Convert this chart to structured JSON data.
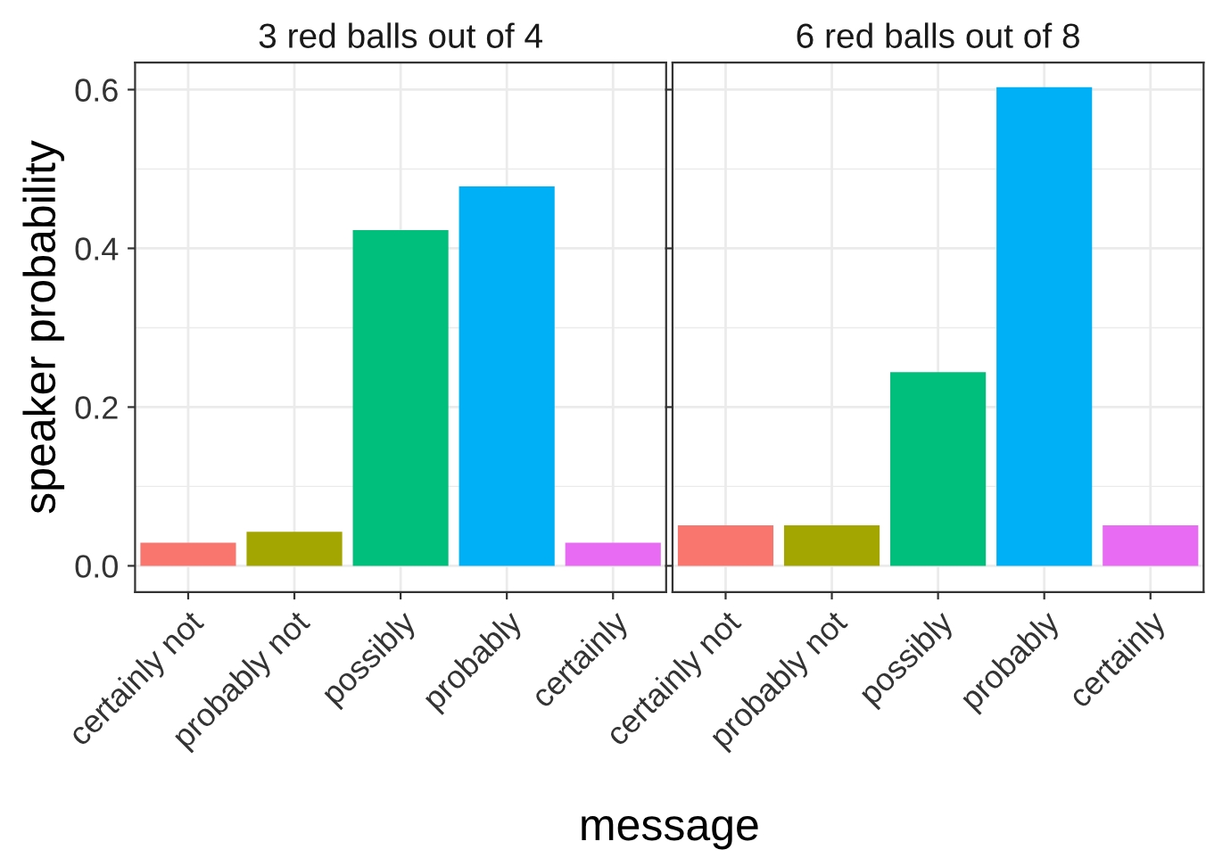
{
  "chart_data": [
    {
      "type": "bar",
      "title": "3 red balls out of 4",
      "xlabel": "message",
      "ylabel": "speaker probability",
      "categories": [
        "certainly not",
        "probably not",
        "possibly",
        "probably",
        "certainly"
      ],
      "values": [
        0.029,
        0.043,
        0.423,
        0.478,
        0.029
      ],
      "colors": [
        "#f8766d",
        "#a3a500",
        "#00bf7d",
        "#00b0f6",
        "#e76bf3"
      ],
      "ylim": [
        -0.033,
        0.634
      ],
      "yticks": [
        {
          "value": 0.0,
          "label": "0.0"
        },
        {
          "value": 0.1,
          "label": null
        },
        {
          "value": 0.2,
          "label": "0.2"
        },
        {
          "value": 0.3,
          "label": null
        },
        {
          "value": 0.4,
          "label": "0.4"
        },
        {
          "value": 0.5,
          "label": null
        },
        {
          "value": 0.6,
          "label": "0.6"
        }
      ],
      "grid": true
    },
    {
      "type": "bar",
      "title": "6 red balls out of 8",
      "categories": [
        "certainly not",
        "probably not",
        "possibly",
        "probably",
        "certainly"
      ],
      "values": [
        0.051,
        0.051,
        0.244,
        0.603,
        0.051
      ],
      "colors": [
        "#f8766d",
        "#a3a500",
        "#00bf7d",
        "#00b0f6",
        "#e76bf3"
      ],
      "ylim": [
        -0.033,
        0.634
      ],
      "yticks": [
        0.0,
        {
          "value": 0.1,
          "label": null
        },
        0.2,
        {
          "value": 0.3,
          "label": null
        },
        0.4,
        {
          "value": 0.5,
          "label": null
        },
        0.6
      ],
      "grid": true,
      "tick_labels": "x"
    }
  ]
}
